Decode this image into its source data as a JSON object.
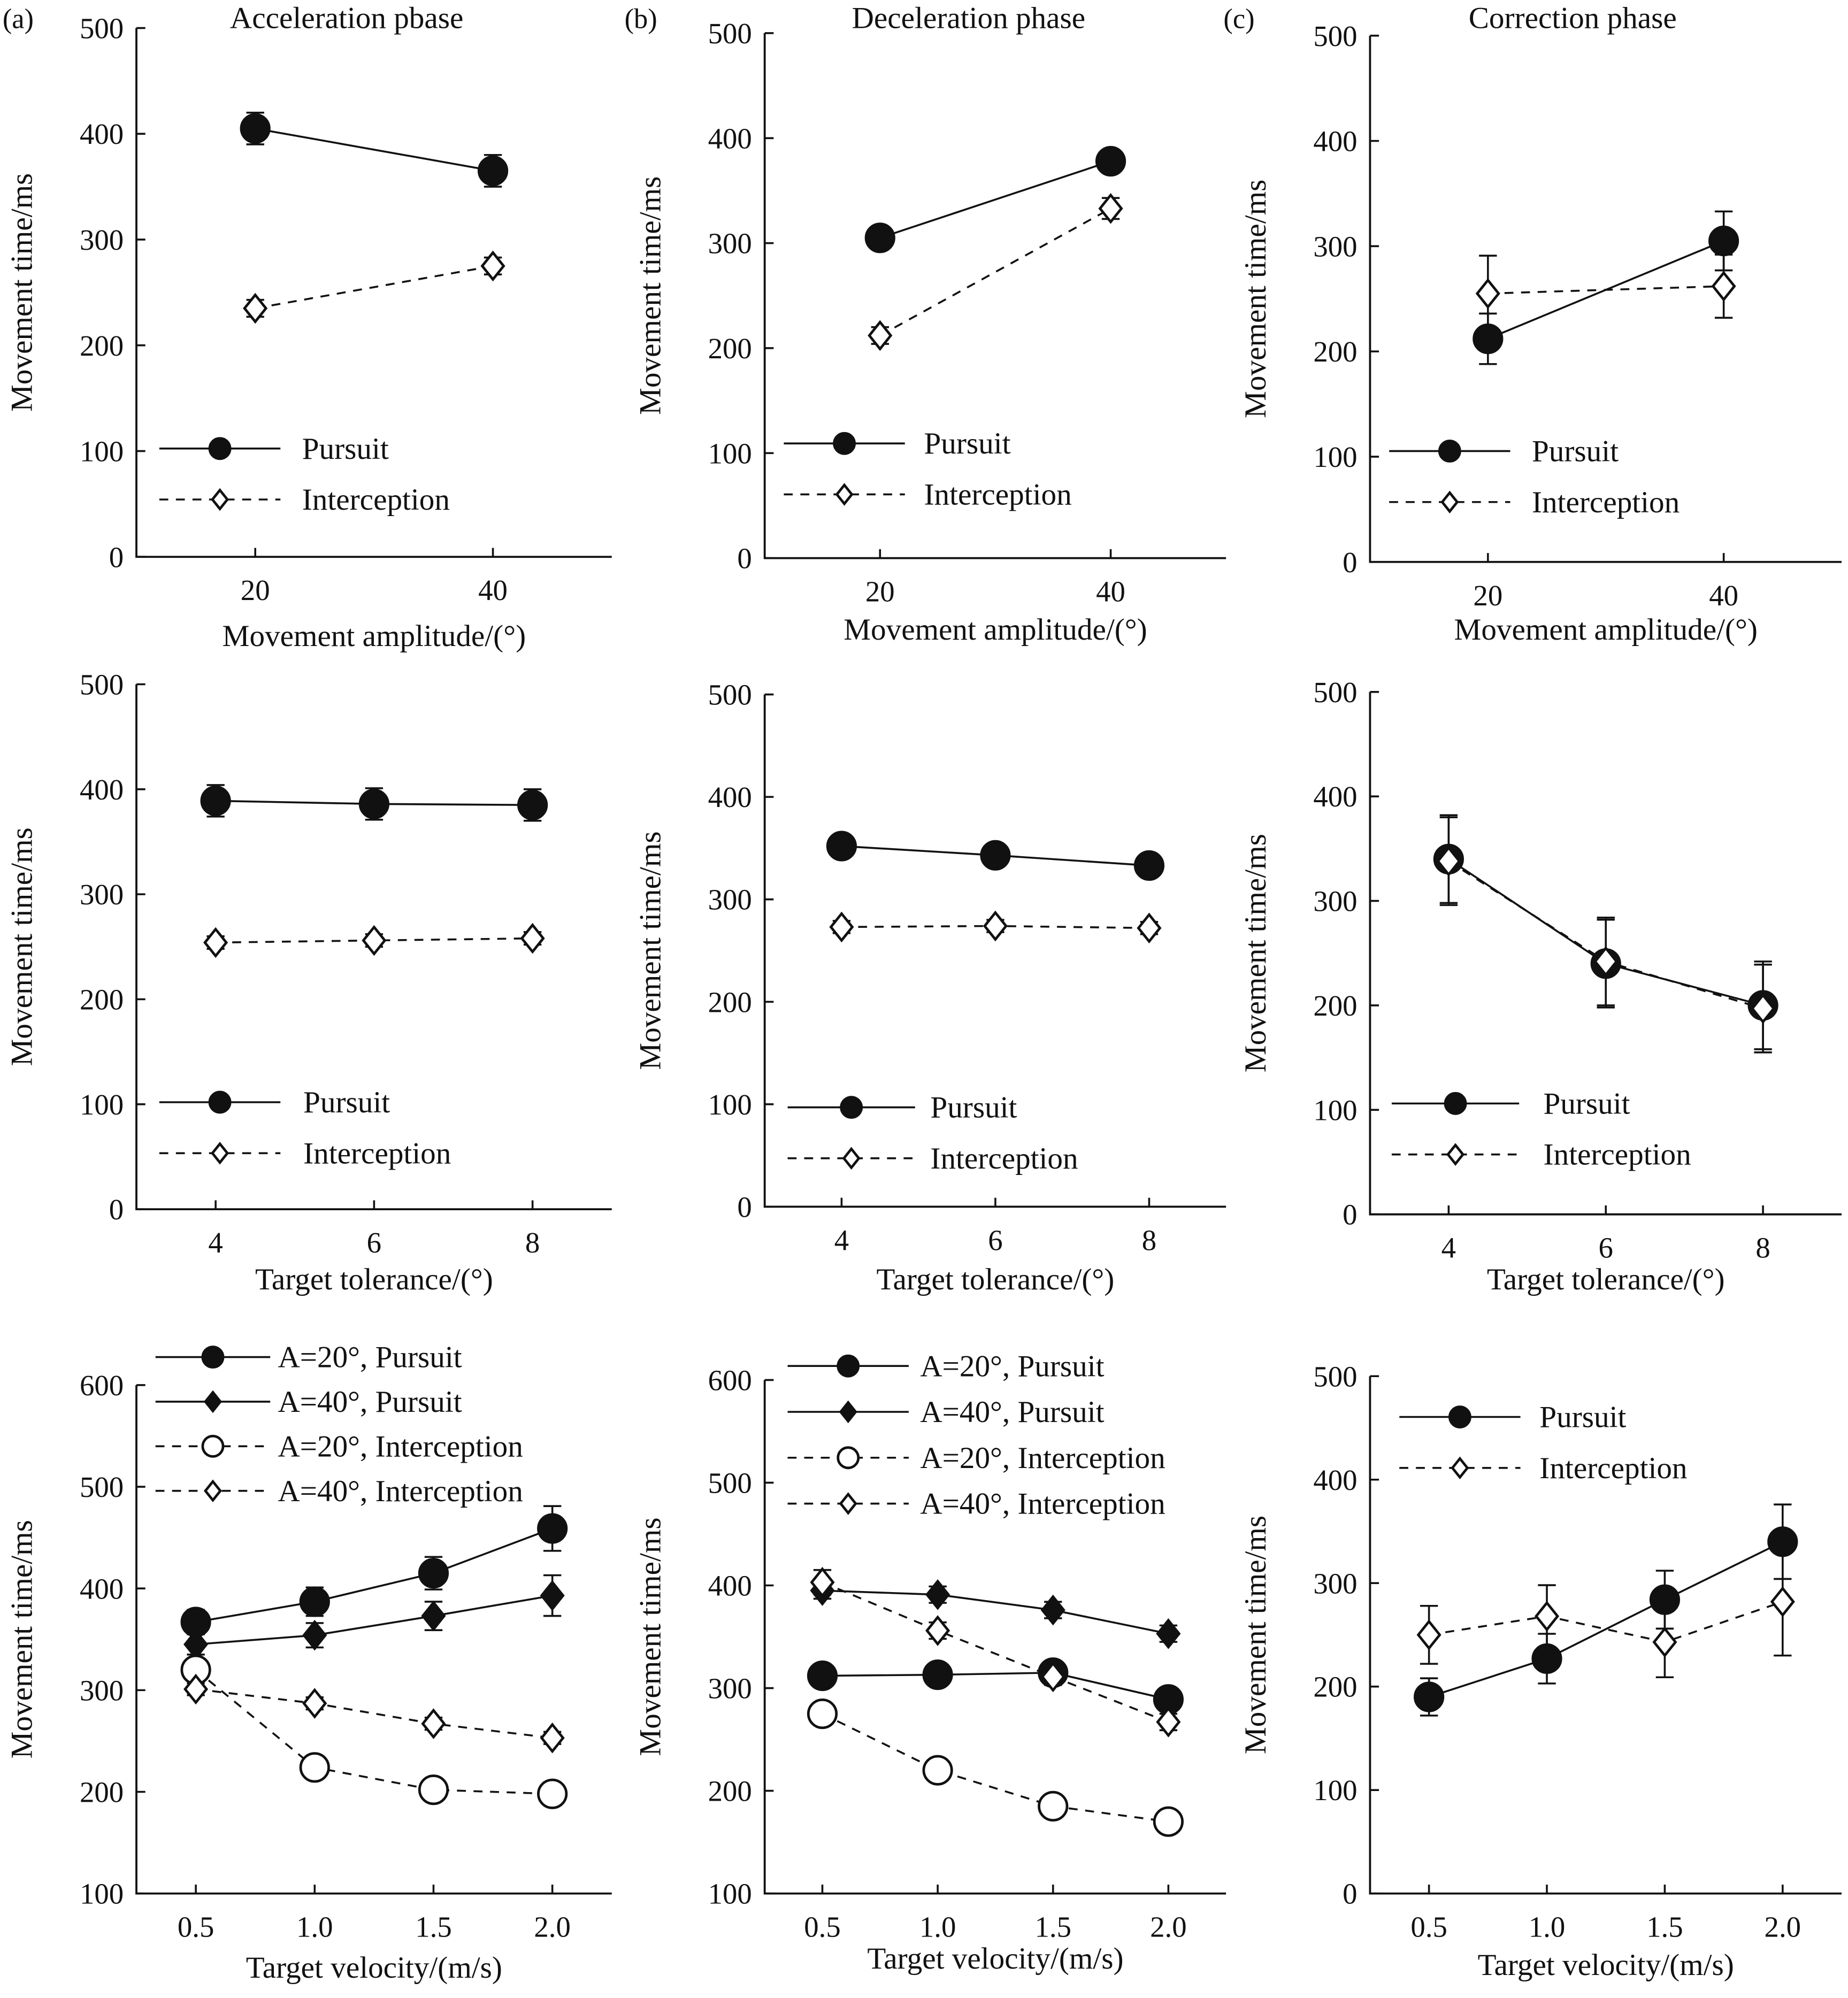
{
  "figure": {
    "panel_letters": [
      "(a)",
      "(b)",
      "(c)"
    ],
    "column_titles": [
      "Acceleration pbase",
      "Deceleration phase",
      "Correction phase"
    ]
  },
  "chart_data": [
    {
      "type": "line",
      "panel": "row1-a",
      "xlabel": "Movement amplitude/(°)",
      "ylabel": "Movement time/ms",
      "xlim": [
        10,
        50
      ],
      "ylim": [
        0,
        500
      ],
      "xticks": [
        20,
        40
      ],
      "yticks": [
        0,
        100,
        200,
        300,
        400,
        500
      ],
      "legend": "bottom-left",
      "series": [
        {
          "name": "Pursuit",
          "marker": "filled-circle",
          "line": "solid",
          "x": [
            20,
            40
          ],
          "y": [
            405,
            365
          ],
          "err": [
            15,
            15
          ]
        },
        {
          "name": "Interception",
          "marker": "open-diamond",
          "line": "dashed",
          "x": [
            20,
            40
          ],
          "y": [
            235,
            275
          ],
          "err": [
            8,
            8
          ]
        }
      ]
    },
    {
      "type": "line",
      "panel": "row1-b",
      "xlabel": "Movement amplitude/(°)",
      "ylabel": "Movement time/ms",
      "xlim": [
        10,
        50
      ],
      "ylim": [
        0,
        500
      ],
      "xticks": [
        20,
        40
      ],
      "yticks": [
        0,
        100,
        200,
        300,
        400,
        500
      ],
      "legend": "bottom-left",
      "series": [
        {
          "name": "Pursuit",
          "marker": "filled-circle",
          "line": "solid",
          "x": [
            20,
            40
          ],
          "y": [
            305,
            378
          ],
          "err": [
            8,
            8
          ]
        },
        {
          "name": "Interception",
          "marker": "open-diamond",
          "line": "dashed",
          "x": [
            20,
            40
          ],
          "y": [
            212,
            333
          ],
          "err": [
            8,
            10
          ]
        }
      ]
    },
    {
      "type": "line",
      "panel": "row1-c",
      "xlabel": "Movement amplitude/(°)",
      "ylabel": "Movement time/ms",
      "xlim": [
        10,
        50
      ],
      "ylim": [
        0,
        500
      ],
      "xticks": [
        20,
        40
      ],
      "yticks": [
        0,
        100,
        200,
        300,
        400,
        500
      ],
      "legend": "bottom-left",
      "series": [
        {
          "name": "Pursuit",
          "marker": "filled-circle",
          "line": "solid",
          "x": [
            20,
            40
          ],
          "y": [
            212,
            305
          ],
          "err": [
            24,
            28
          ]
        },
        {
          "name": "Interception",
          "marker": "open-diamond",
          "line": "dashed",
          "x": [
            20,
            40
          ],
          "y": [
            255,
            262
          ],
          "err": [
            36,
            30
          ]
        }
      ]
    },
    {
      "type": "line",
      "panel": "row2-a",
      "xlabel": "Target tolerance/(°)",
      "ylabel": "Movement time/ms",
      "xlim": [
        3,
        9
      ],
      "ylim": [
        0,
        500
      ],
      "xticks": [
        4,
        6,
        8
      ],
      "yticks": [
        0,
        100,
        200,
        300,
        400,
        500
      ],
      "legend": "bottom-left",
      "series": [
        {
          "name": "Pursuit",
          "marker": "filled-circle",
          "line": "solid",
          "x": [
            4,
            6,
            8
          ],
          "y": [
            389,
            386,
            385
          ],
          "err": [
            15,
            15,
            15
          ]
        },
        {
          "name": "Interception",
          "marker": "open-diamond",
          "line": "dashed",
          "x": [
            4,
            6,
            8
          ],
          "y": [
            254,
            256,
            258
          ],
          "err": [
            6,
            6,
            6
          ]
        }
      ]
    },
    {
      "type": "line",
      "panel": "row2-b",
      "xlabel": "Target tolerance/(°)",
      "ylabel": "Movement time/ms",
      "xlim": [
        3,
        9
      ],
      "ylim": [
        0,
        500
      ],
      "xticks": [
        4,
        6,
        8
      ],
      "yticks": [
        0,
        100,
        200,
        300,
        400,
        500
      ],
      "legend": "bottom-left",
      "series": [
        {
          "name": "Pursuit",
          "marker": "filled-circle",
          "line": "solid",
          "x": [
            4,
            6,
            8
          ],
          "y": [
            352,
            343,
            333
          ],
          "err": [
            8,
            8,
            8
          ]
        },
        {
          "name": "Interception",
          "marker": "open-diamond",
          "line": "dashed",
          "x": [
            4,
            6,
            8
          ],
          "y": [
            273,
            274,
            272
          ],
          "err": [
            6,
            6,
            6
          ]
        }
      ]
    },
    {
      "type": "line",
      "panel": "row2-c",
      "xlabel": "Target tolerance/(°)",
      "ylabel": "Movement time/ms",
      "xlim": [
        3,
        9
      ],
      "ylim": [
        0,
        500
      ],
      "xticks": [
        4,
        6,
        8
      ],
      "yticks": [
        0,
        100,
        200,
        300,
        400,
        500
      ],
      "legend": "bottom-left",
      "series": [
        {
          "name": "Pursuit",
          "marker": "filled-circle",
          "line": "solid",
          "x": [
            4,
            6,
            8
          ],
          "y": [
            340,
            240,
            200
          ],
          "err": [
            42,
            42,
            42
          ]
        },
        {
          "name": "Interception",
          "marker": "open-diamond",
          "line": "dashed",
          "x": [
            4,
            6,
            8
          ],
          "y": [
            338,
            242,
            197
          ],
          "err": [
            42,
            42,
            42
          ]
        }
      ]
    },
    {
      "type": "line",
      "panel": "row3-a",
      "xlabel": "Target velocity/(m/s)",
      "ylabel": "Movement time/ms",
      "xlim": [
        0.25,
        2.25
      ],
      "ylim": [
        100,
        600
      ],
      "xticks": [
        "0.5",
        "1.0",
        "1.5",
        "2.0"
      ],
      "yticks": [
        100,
        200,
        300,
        400,
        500,
        600
      ],
      "legend": "top",
      "series": [
        {
          "name": "A=20°, Pursuit",
          "marker": "filled-circle",
          "line": "solid",
          "x": [
            0.5,
            1.0,
            1.5,
            2.0
          ],
          "y": [
            367,
            387,
            415,
            459
          ],
          "err": [
            12,
            14,
            16,
            22
          ]
        },
        {
          "name": "A=40°, Pursuit",
          "marker": "filled-diamond",
          "line": "solid",
          "x": [
            0.5,
            1.0,
            1.5,
            2.0
          ],
          "y": [
            345,
            354,
            373,
            393
          ],
          "err": [
            10,
            12,
            14,
            20
          ]
        },
        {
          "name": "A=20°, Interception",
          "marker": "open-circle",
          "line": "dashed",
          "x": [
            0.5,
            1.0,
            1.5,
            2.0
          ],
          "y": [
            320,
            224,
            202,
            198
          ],
          "err": [
            6,
            6,
            6,
            6
          ]
        },
        {
          "name": "A=40°, Interception",
          "marker": "open-diamond",
          "line": "dashed",
          "x": [
            0.5,
            1.0,
            1.5,
            2.0
          ],
          "y": [
            301,
            287,
            267,
            253
          ],
          "err": [
            6,
            6,
            6,
            6
          ]
        }
      ]
    },
    {
      "type": "line",
      "panel": "row3-b",
      "xlabel": "Target velocity/(m/s)",
      "ylabel": "Movement time/ms",
      "xlim": [
        0.25,
        2.25
      ],
      "ylim": [
        100,
        600
      ],
      "xticks": [
        "0.5",
        "1.0",
        "1.5",
        "2.0"
      ],
      "yticks": [
        100,
        200,
        300,
        400,
        500,
        600
      ],
      "legend": "top",
      "series": [
        {
          "name": "A=20°, Pursuit",
          "marker": "filled-circle",
          "line": "solid",
          "x": [
            0.5,
            1.0,
            1.5,
            2.0
          ],
          "y": [
            312,
            313,
            315,
            289
          ],
          "err": [
            6,
            6,
            6,
            6
          ]
        },
        {
          "name": "A=40°, Pursuit",
          "marker": "filled-diamond",
          "line": "solid",
          "x": [
            0.5,
            1.0,
            1.5,
            2.0
          ],
          "y": [
            395,
            391,
            376,
            353
          ],
          "err": [
            8,
            8,
            8,
            8
          ]
        },
        {
          "name": "A=20°, Interception",
          "marker": "open-circle",
          "line": "dashed",
          "x": [
            0.5,
            1.0,
            1.5,
            2.0
          ],
          "y": [
            275,
            220,
            185,
            170
          ],
          "err": [
            6,
            6,
            6,
            6
          ]
        },
        {
          "name": "A=40°, Interception",
          "marker": "open-diamond",
          "line": "dashed",
          "x": [
            0.5,
            1.0,
            1.5,
            2.0
          ],
          "y": [
            403,
            356,
            311,
            267
          ],
          "err": [
            12,
            8,
            8,
            8
          ]
        }
      ]
    },
    {
      "type": "line",
      "panel": "row3-c",
      "xlabel": "Target velocity/(m/s)",
      "ylabel": "Movement time/ms",
      "xlim": [
        0.25,
        2.25
      ],
      "ylim": [
        0,
        500
      ],
      "xticks": [
        "0.5",
        "1.0",
        "1.5",
        "2.0"
      ],
      "yticks": [
        0,
        100,
        200,
        300,
        400,
        500
      ],
      "legend": "top-left",
      "series": [
        {
          "name": "Pursuit",
          "marker": "filled-circle",
          "line": "solid",
          "x": [
            0.5,
            1.0,
            1.5,
            2.0
          ],
          "y": [
            190,
            227,
            284,
            340
          ],
          "err": [
            18,
            24,
            28,
            36
          ]
        },
        {
          "name": "Interception",
          "marker": "open-diamond",
          "line": "dashed",
          "x": [
            0.5,
            1.0,
            1.5,
            2.0
          ],
          "y": [
            250,
            268,
            243,
            282
          ],
          "err": [
            28,
            30,
            34,
            52
          ]
        }
      ]
    }
  ]
}
